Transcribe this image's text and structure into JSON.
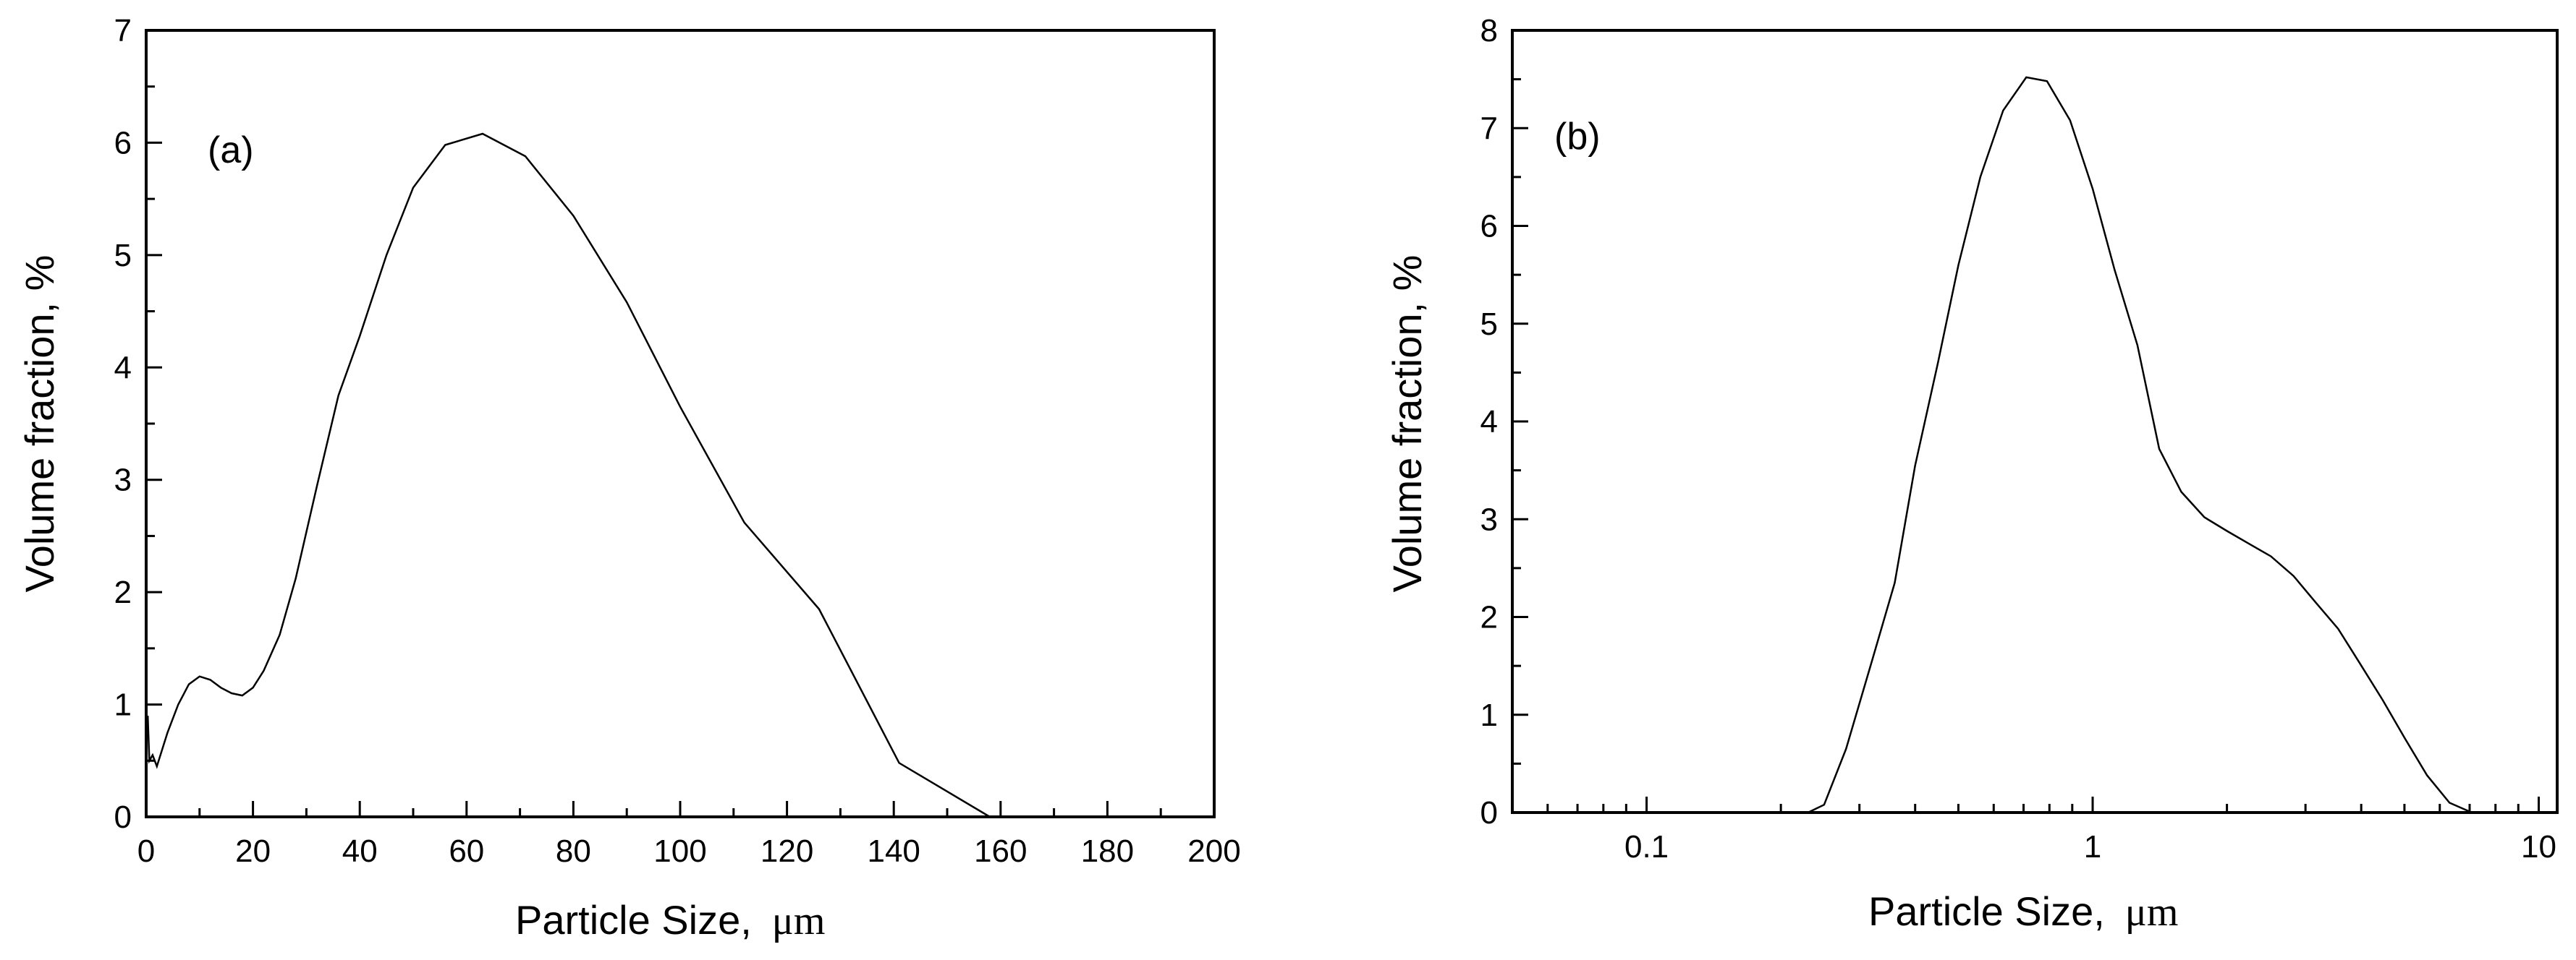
{
  "chart_data": [
    {
      "type": "line",
      "panel_label": "(a)",
      "xlabel": "Particle Size,",
      "xlabel_unit": "μm",
      "ylabel": "Volume fraction,  %",
      "xscale": "linear",
      "xlim": [
        0,
        200
      ],
      "ylim": [
        0,
        7
      ],
      "xticks": [
        "0",
        "20",
        "40",
        "60",
        "80",
        "100",
        "120",
        "140",
        "160",
        "180",
        "200"
      ],
      "yticks": [
        "0",
        "1",
        "2",
        "3",
        "4",
        "5",
        "6",
        "7"
      ],
      "series": [
        {
          "name": "Volume fraction",
          "x": [
            0.3,
            0.6,
            1.2,
            2,
            4,
            6,
            8,
            10,
            12,
            14,
            16,
            18,
            20,
            22,
            25,
            28,
            32,
            36,
            40,
            45,
            50,
            56,
            63,
            71,
            80,
            90,
            100,
            112,
            126,
            141,
            158
          ],
          "y": [
            0.9,
            0.5,
            0.55,
            0.45,
            0.75,
            1.0,
            1.18,
            1.25,
            1.22,
            1.15,
            1.1,
            1.08,
            1.15,
            1.3,
            1.62,
            2.12,
            2.95,
            3.75,
            4.28,
            5.0,
            5.6,
            5.98,
            6.08,
            5.88,
            5.35,
            4.58,
            3.65,
            2.62,
            1.85,
            0.48,
            0.0
          ]
        }
      ]
    },
    {
      "type": "line",
      "panel_label": "(b)",
      "xlabel": "Particle Size,",
      "xlabel_unit": "μm",
      "ylabel": "Volume fraction,  %",
      "xscale": "log",
      "xlim": [
        0.05,
        11
      ],
      "ylim": [
        0,
        8
      ],
      "xticks": [
        "0.1",
        "1",
        "10"
      ],
      "yticks": [
        "0",
        "1",
        "2",
        "3",
        "4",
        "5",
        "6",
        "7",
        "8"
      ],
      "series": [
        {
          "name": "Volume fraction",
          "x": [
            0.2,
            0.23,
            0.25,
            0.28,
            0.32,
            0.36,
            0.4,
            0.45,
            0.5,
            0.56,
            0.63,
            0.71,
            0.79,
            0.89,
            1.0,
            1.12,
            1.26,
            1.41,
            1.58,
            1.78,
            2.0,
            2.24,
            2.51,
            2.82,
            3.16,
            3.55,
            3.98,
            4.47,
            5.01,
            5.62,
            6.31,
            7.08
          ],
          "y": [
            0.0,
            0.0,
            0.08,
            0.65,
            1.55,
            2.35,
            3.55,
            4.6,
            5.6,
            6.5,
            7.18,
            7.52,
            7.48,
            7.08,
            6.38,
            5.55,
            4.78,
            3.72,
            3.28,
            3.02,
            2.88,
            2.75,
            2.62,
            2.42,
            2.15,
            1.88,
            1.52,
            1.15,
            0.76,
            0.38,
            0.1,
            0.0
          ]
        }
      ]
    }
  ]
}
